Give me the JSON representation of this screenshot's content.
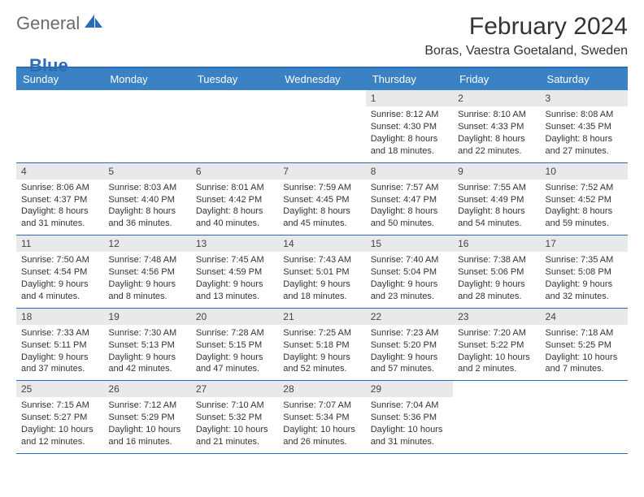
{
  "logo": {
    "part1": "General",
    "part2": "Blue"
  },
  "title": "February 2024",
  "location": "Boras, Vaestra Goetaland, Sweden",
  "colors": {
    "header_bg": "#3b82c4",
    "border": "#2a6db5",
    "daynum_bg": "#e8e9ea",
    "text": "#333333",
    "logo_gray": "#6b6b6b",
    "logo_blue": "#2a6db5"
  },
  "day_names": [
    "Sunday",
    "Monday",
    "Tuesday",
    "Wednesday",
    "Thursday",
    "Friday",
    "Saturday"
  ],
  "weeks": [
    [
      {
        "empty": true
      },
      {
        "empty": true
      },
      {
        "empty": true
      },
      {
        "empty": true
      },
      {
        "num": "1",
        "sunrise": "Sunrise: 8:12 AM",
        "sunset": "Sunset: 4:30 PM",
        "daylight": "Daylight: 8 hours and 18 minutes."
      },
      {
        "num": "2",
        "sunrise": "Sunrise: 8:10 AM",
        "sunset": "Sunset: 4:33 PM",
        "daylight": "Daylight: 8 hours and 22 minutes."
      },
      {
        "num": "3",
        "sunrise": "Sunrise: 8:08 AM",
        "sunset": "Sunset: 4:35 PM",
        "daylight": "Daylight: 8 hours and 27 minutes."
      }
    ],
    [
      {
        "num": "4",
        "sunrise": "Sunrise: 8:06 AM",
        "sunset": "Sunset: 4:37 PM",
        "daylight": "Daylight: 8 hours and 31 minutes."
      },
      {
        "num": "5",
        "sunrise": "Sunrise: 8:03 AM",
        "sunset": "Sunset: 4:40 PM",
        "daylight": "Daylight: 8 hours and 36 minutes."
      },
      {
        "num": "6",
        "sunrise": "Sunrise: 8:01 AM",
        "sunset": "Sunset: 4:42 PM",
        "daylight": "Daylight: 8 hours and 40 minutes."
      },
      {
        "num": "7",
        "sunrise": "Sunrise: 7:59 AM",
        "sunset": "Sunset: 4:45 PM",
        "daylight": "Daylight: 8 hours and 45 minutes."
      },
      {
        "num": "8",
        "sunrise": "Sunrise: 7:57 AM",
        "sunset": "Sunset: 4:47 PM",
        "daylight": "Daylight: 8 hours and 50 minutes."
      },
      {
        "num": "9",
        "sunrise": "Sunrise: 7:55 AM",
        "sunset": "Sunset: 4:49 PM",
        "daylight": "Daylight: 8 hours and 54 minutes."
      },
      {
        "num": "10",
        "sunrise": "Sunrise: 7:52 AM",
        "sunset": "Sunset: 4:52 PM",
        "daylight": "Daylight: 8 hours and 59 minutes."
      }
    ],
    [
      {
        "num": "11",
        "sunrise": "Sunrise: 7:50 AM",
        "sunset": "Sunset: 4:54 PM",
        "daylight": "Daylight: 9 hours and 4 minutes."
      },
      {
        "num": "12",
        "sunrise": "Sunrise: 7:48 AM",
        "sunset": "Sunset: 4:56 PM",
        "daylight": "Daylight: 9 hours and 8 minutes."
      },
      {
        "num": "13",
        "sunrise": "Sunrise: 7:45 AM",
        "sunset": "Sunset: 4:59 PM",
        "daylight": "Daylight: 9 hours and 13 minutes."
      },
      {
        "num": "14",
        "sunrise": "Sunrise: 7:43 AM",
        "sunset": "Sunset: 5:01 PM",
        "daylight": "Daylight: 9 hours and 18 minutes."
      },
      {
        "num": "15",
        "sunrise": "Sunrise: 7:40 AM",
        "sunset": "Sunset: 5:04 PM",
        "daylight": "Daylight: 9 hours and 23 minutes."
      },
      {
        "num": "16",
        "sunrise": "Sunrise: 7:38 AM",
        "sunset": "Sunset: 5:06 PM",
        "daylight": "Daylight: 9 hours and 28 minutes."
      },
      {
        "num": "17",
        "sunrise": "Sunrise: 7:35 AM",
        "sunset": "Sunset: 5:08 PM",
        "daylight": "Daylight: 9 hours and 32 minutes."
      }
    ],
    [
      {
        "num": "18",
        "sunrise": "Sunrise: 7:33 AM",
        "sunset": "Sunset: 5:11 PM",
        "daylight": "Daylight: 9 hours and 37 minutes."
      },
      {
        "num": "19",
        "sunrise": "Sunrise: 7:30 AM",
        "sunset": "Sunset: 5:13 PM",
        "daylight": "Daylight: 9 hours and 42 minutes."
      },
      {
        "num": "20",
        "sunrise": "Sunrise: 7:28 AM",
        "sunset": "Sunset: 5:15 PM",
        "daylight": "Daylight: 9 hours and 47 minutes."
      },
      {
        "num": "21",
        "sunrise": "Sunrise: 7:25 AM",
        "sunset": "Sunset: 5:18 PM",
        "daylight": "Daylight: 9 hours and 52 minutes."
      },
      {
        "num": "22",
        "sunrise": "Sunrise: 7:23 AM",
        "sunset": "Sunset: 5:20 PM",
        "daylight": "Daylight: 9 hours and 57 minutes."
      },
      {
        "num": "23",
        "sunrise": "Sunrise: 7:20 AM",
        "sunset": "Sunset: 5:22 PM",
        "daylight": "Daylight: 10 hours and 2 minutes."
      },
      {
        "num": "24",
        "sunrise": "Sunrise: 7:18 AM",
        "sunset": "Sunset: 5:25 PM",
        "daylight": "Daylight: 10 hours and 7 minutes."
      }
    ],
    [
      {
        "num": "25",
        "sunrise": "Sunrise: 7:15 AM",
        "sunset": "Sunset: 5:27 PM",
        "daylight": "Daylight: 10 hours and 12 minutes."
      },
      {
        "num": "26",
        "sunrise": "Sunrise: 7:12 AM",
        "sunset": "Sunset: 5:29 PM",
        "daylight": "Daylight: 10 hours and 16 minutes."
      },
      {
        "num": "27",
        "sunrise": "Sunrise: 7:10 AM",
        "sunset": "Sunset: 5:32 PM",
        "daylight": "Daylight: 10 hours and 21 minutes."
      },
      {
        "num": "28",
        "sunrise": "Sunrise: 7:07 AM",
        "sunset": "Sunset: 5:34 PM",
        "daylight": "Daylight: 10 hours and 26 minutes."
      },
      {
        "num": "29",
        "sunrise": "Sunrise: 7:04 AM",
        "sunset": "Sunset: 5:36 PM",
        "daylight": "Daylight: 10 hours and 31 minutes."
      },
      {
        "empty": true
      },
      {
        "empty": true
      }
    ]
  ]
}
